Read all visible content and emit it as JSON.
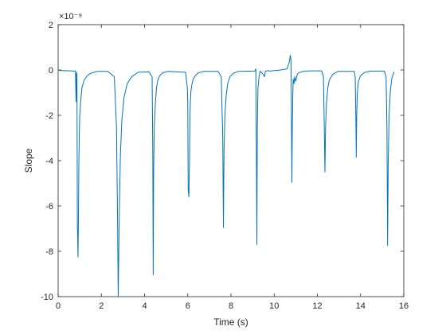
{
  "chart_data": {
    "type": "line",
    "title": "",
    "xlabel": "Time (s)",
    "ylabel": "Slope",
    "exponent_label": "×10⁻⁹",
    "xlim": [
      0,
      16
    ],
    "ylim": [
      -10,
      2
    ],
    "x_ticks": [
      0,
      2,
      4,
      6,
      8,
      10,
      12,
      14,
      16
    ],
    "x_tick_labels": [
      "0",
      "2",
      "4",
      "6",
      "8",
      "10",
      "12",
      "14",
      "16"
    ],
    "y_ticks": [
      -10,
      -8,
      -6,
      -4,
      -2,
      0,
      2
    ],
    "y_tick_labels": [
      "-10",
      "-8",
      "-6",
      "-4",
      "-2",
      "0",
      "2"
    ],
    "grid": false,
    "line_color": "#0072BD",
    "series": [
      {
        "x": [
          0.05,
          0.8,
          0.83,
          0.85,
          0.87,
          0.89,
          0.9,
          0.92,
          0.94,
          0.96,
          0.98,
          1.0,
          1.05,
          1.1,
          1.2,
          1.35,
          1.5,
          1.8,
          2.3,
          2.6,
          2.7,
          2.75,
          2.78,
          2.82,
          2.88,
          2.95,
          3.05,
          3.2,
          3.4,
          3.7,
          4.2,
          4.35,
          4.38,
          4.4,
          4.42,
          4.45,
          4.5,
          4.55,
          4.6,
          4.7,
          4.85,
          5.1,
          5.9,
          5.98,
          6.0,
          6.02,
          6.05,
          6.08,
          6.1,
          6.12,
          6.15,
          6.2,
          6.25,
          6.35,
          6.5,
          6.75,
          7.4,
          7.55,
          7.62,
          7.65,
          7.68,
          7.72,
          7.78,
          7.85,
          7.95,
          8.1,
          8.35,
          9.1,
          9.15,
          9.18,
          9.2,
          9.22,
          9.25,
          9.3,
          9.35,
          9.4,
          9.5,
          9.55,
          9.6,
          9.7,
          9.8,
          10.3,
          10.6,
          10.7,
          10.75,
          10.78,
          10.8,
          10.82,
          10.84,
          10.86,
          10.88,
          10.92,
          10.95,
          11.0,
          11.05,
          11.1,
          11.2,
          11.4,
          11.7,
          12.2,
          12.28,
          12.32,
          12.35,
          12.38,
          12.42,
          12.48,
          12.55,
          12.7,
          12.95,
          13.7,
          13.75,
          13.78,
          13.8,
          13.82,
          13.85,
          13.9,
          14.0,
          14.2,
          14.45,
          15.1,
          15.18,
          15.22,
          15.25,
          15.28,
          15.32,
          15.38,
          15.45,
          15.55
        ],
        "y": [
          -0.02,
          -0.05,
          -1.4,
          -0.1,
          -0.2,
          -7.0,
          -7.1,
          -8.25,
          -6.5,
          -4.0,
          -2.8,
          -2.0,
          -1.3,
          -0.8,
          -0.45,
          -0.25,
          -0.15,
          -0.06,
          -0.06,
          -0.3,
          -2.5,
          -6.5,
          -10.0,
          -7.0,
          -3.8,
          -2.2,
          -1.2,
          -0.6,
          -0.3,
          -0.1,
          -0.08,
          -0.3,
          -3.5,
          -9.05,
          -4.5,
          -2.5,
          -1.5,
          -0.8,
          -0.5,
          -0.25,
          -0.12,
          -0.06,
          -0.1,
          -0.8,
          -1.4,
          -5.3,
          -5.6,
          -4.0,
          -2.2,
          -1.4,
          -0.9,
          -0.6,
          -0.4,
          -0.25,
          -0.12,
          -0.06,
          -0.06,
          -0.3,
          -3.0,
          -6.95,
          -3.5,
          -2.0,
          -1.1,
          -0.6,
          -0.3,
          -0.15,
          -0.06,
          -0.05,
          0.05,
          -4.0,
          -7.7,
          -2.5,
          -0.8,
          -0.3,
          -0.05,
          -0.1,
          -0.2,
          -0.3,
          -0.05,
          -0.03,
          -0.05,
          0.0,
          0.05,
          0.35,
          0.65,
          0.4,
          -2.0,
          -4.95,
          -2.5,
          -1.2,
          -0.4,
          -0.6,
          -0.3,
          -0.5,
          -0.25,
          -0.15,
          -0.1,
          -0.05,
          -0.04,
          -0.04,
          -0.3,
          -2.5,
          -4.5,
          -2.5,
          -1.5,
          -0.8,
          -0.45,
          -0.2,
          -0.06,
          -0.06,
          -0.3,
          -2.0,
          -3.85,
          -2.0,
          -1.0,
          -0.5,
          -0.25,
          -0.1,
          -0.05,
          -0.05,
          -0.3,
          -2.5,
          -7.75,
          -4.0,
          -2.0,
          -0.9,
          -0.35,
          -0.08
        ]
      }
    ]
  }
}
